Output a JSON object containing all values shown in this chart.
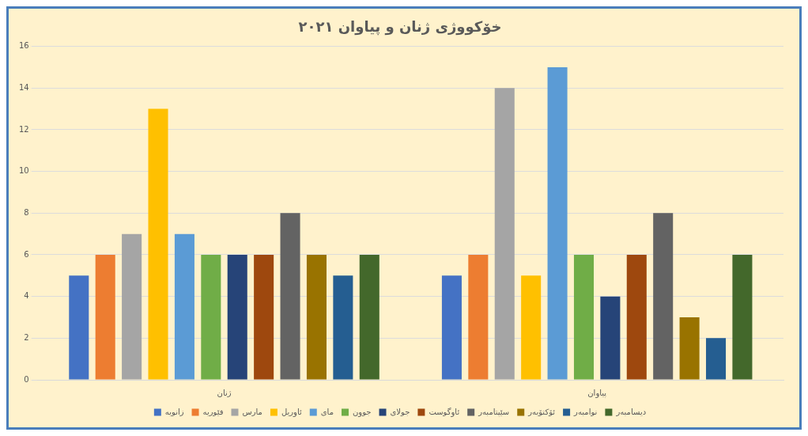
{
  "chart_data": {
    "type": "bar",
    "title": "خۆکووژی ژنان و پیاوان ٢٠٢١",
    "categories": [
      "ژنان",
      "پیاوان"
    ],
    "series": [
      {
        "name": "زانویه",
        "color": "#4472c4",
        "values": [
          5,
          5
        ]
      },
      {
        "name": "فێوریه",
        "color": "#ed7d31",
        "values": [
          6,
          6
        ]
      },
      {
        "name": "مارس",
        "color": "#a5a5a5",
        "values": [
          7,
          14
        ]
      },
      {
        "name": "ئاوریل",
        "color": "#ffc000",
        "values": [
          13,
          5
        ]
      },
      {
        "name": "مای",
        "color": "#5b9bd5",
        "values": [
          7,
          15
        ]
      },
      {
        "name": "جوون",
        "color": "#70ad47",
        "values": [
          6,
          6
        ]
      },
      {
        "name": "جولای",
        "color": "#264478",
        "values": [
          6,
          4
        ]
      },
      {
        "name": "ئاوگوست",
        "color": "#9e480e",
        "values": [
          6,
          6
        ]
      },
      {
        "name": "سێپتامبەر",
        "color": "#636363",
        "values": [
          8,
          8
        ]
      },
      {
        "name": "ئۆکتۆبەر",
        "color": "#997300",
        "values": [
          6,
          3
        ]
      },
      {
        "name": "نوامبەر",
        "color": "#255e91",
        "values": [
          5,
          2
        ]
      },
      {
        "name": "دیسامبەر",
        "color": "#43682b",
        "values": [
          6,
          6
        ]
      }
    ],
    "ylim": [
      0,
      16
    ],
    "yticks": [
      0,
      2,
      4,
      6,
      8,
      10,
      12,
      14,
      16
    ],
    "grid": "y",
    "legend": "bottom"
  }
}
